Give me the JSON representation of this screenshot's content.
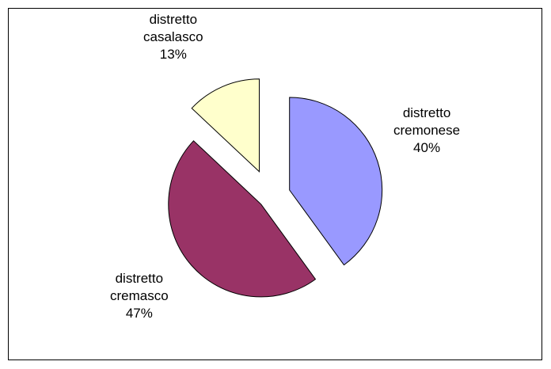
{
  "chart_data": {
    "type": "pie",
    "exploded": true,
    "start_angle_deg": 0,
    "direction": "clockwise",
    "slices": [
      {
        "name_line1": "distretto",
        "name_line2": "cremonese",
        "value": 40,
        "value_label": "40%",
        "color": "#9999ff"
      },
      {
        "name_line1": "distretto",
        "name_line2": "cremasco",
        "value": 47,
        "value_label": "47%",
        "color": "#993366"
      },
      {
        "name_line1": "distretto",
        "name_line2": "casalasco",
        "value": 13,
        "value_label": "13%",
        "color": "#ffffcc"
      }
    ]
  }
}
